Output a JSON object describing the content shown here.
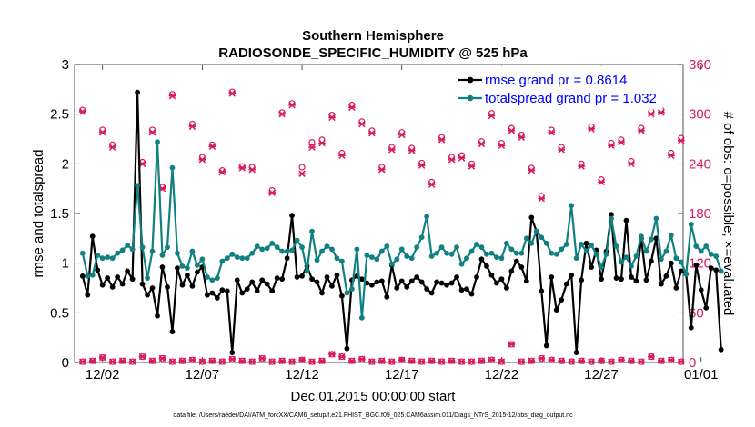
{
  "colors": {
    "rmse": "#000000",
    "spread": "#118080",
    "obs": "#d81b60",
    "legend_text": "#0000ff",
    "axes": "#262626"
  },
  "chart_data": {
    "type": "line",
    "title": "Southern Hemisphere",
    "subtitle": "RADIOSONDE_SPECIFIC_HUMIDITY @ 525 hPa",
    "xlabel": "Dec.01,2015 00:00:00 start",
    "ylabel_left": "rmse and totalspread",
    "ylabel_right": "# of obs: o=possible; ×=evaluated",
    "footer": "data file: /Users/raeder/DAI/ATM_forcXX/CAM6_setup/f.e21.FHIST_BGC.f09_025.CAM6assim.011/Diags_NTrS_2015-12/obs_diag_output.nc",
    "xlim": [
      0.6,
      31.1
    ],
    "x_ticks": [
      2,
      7,
      12,
      17,
      22,
      27,
      32
    ],
    "x_tick_labels": [
      "12/02",
      "12/07",
      "12/12",
      "12/17",
      "12/22",
      "12/27",
      "01/01"
    ],
    "ylim_left": [
      0,
      3
    ],
    "y_ticks_left": [
      0,
      0.5,
      1,
      1.5,
      2,
      2.5,
      3
    ],
    "y_tick_labels_left": [
      "0",
      "0.5",
      "1",
      "1.5",
      "2",
      "2.5",
      "3"
    ],
    "ylim_right": [
      0,
      360
    ],
    "y_ticks_right": [
      0,
      60,
      120,
      180,
      240,
      300,
      360
    ],
    "y_tick_labels_right": [
      "0",
      "60",
      "120",
      "180",
      "240",
      "300",
      "360"
    ],
    "x_step": 0.25,
    "x_start": 1.0,
    "legend": [
      {
        "label": "rmse grand pr = 0.8614",
        "series": "rmse"
      },
      {
        "label": "totalspread grand pr = 1.032",
        "series": "spread"
      }
    ],
    "series": [
      {
        "name": "rmse",
        "values": [
          0.87,
          0.68,
          1.27,
          0.93,
          0.78,
          0.85,
          0.76,
          0.86,
          0.79,
          0.92,
          0.84,
          2.72,
          0.79,
          0.68,
          0.75,
          0.47,
          0.96,
          0.76,
          0.31,
          0.95,
          0.78,
          0.88,
          0.77,
          0.91,
          0.96,
          0.68,
          0.7,
          0.65,
          0.73,
          0.72,
          0.1,
          0.83,
          0.7,
          0.74,
          0.81,
          0.72,
          0.83,
          0.79,
          0.72,
          0.85,
          0.84,
          1.05,
          1.48,
          0.86,
          0.87,
          0.97,
          0.84,
          0.81,
          0.7,
          0.86,
          0.77,
          0.88,
          0.67,
          0.14,
          0.83,
          0.87,
          0.84,
          0.8,
          0.78,
          0.81,
          0.82,
          0.66,
          0.98,
          0.75,
          0.82,
          0.76,
          0.82,
          0.86,
          0.81,
          0.74,
          0.7,
          0.81,
          0.8,
          0.78,
          0.8,
          0.86,
          0.73,
          0.74,
          0.69,
          0.86,
          1.04,
          0.97,
          0.88,
          0.8,
          0.84,
          0.75,
          0.92,
          1.02,
          0.96,
          0.82,
          1.46,
          1.32,
          0.72,
          0.17,
          0.86,
          0.53,
          0.63,
          0.79,
          0.88,
          0.1,
          0.83,
          1.2,
          0.96,
          1.13,
          0.84,
          1.12,
          1.49,
          0.85,
          0.84,
          1.43,
          0.86,
          0.82,
          1.25,
          0.83,
          1.02,
          1.25,
          0.79,
          0.87,
          1.0,
          0.75,
          0.92,
          0.89,
          0.35,
          0.98,
          0.73,
          0.55,
          0.95,
          0.93,
          0.13
        ]
      },
      {
        "name": "totalspread",
        "values": [
          1.1,
          0.87,
          0.88,
          1.08,
          1.05,
          1.06,
          1.05,
          1.1,
          1.13,
          1.18,
          1.14,
          1.78,
          1.16,
          0.85,
          1.12,
          2.22,
          1.08,
          1.16,
          1.96,
          1.1,
          0.97,
          0.95,
          1.12,
          0.98,
          1.04,
          0.86,
          0.83,
          0.85,
          1.02,
          1.05,
          1.09,
          1.06,
          1.05,
          1.05,
          1.1,
          1.17,
          1.14,
          1.15,
          1.2,
          1.16,
          1.12,
          1.12,
          1.13,
          1.23,
          1.16,
          0.92,
          1.32,
          1.03,
          1.12,
          1.17,
          1.14,
          1.05,
          1.02,
          0.7,
          0.74,
          1.14,
          0.45,
          1.08,
          1.06,
          1.04,
          1.12,
          1.17,
          0.99,
          1.04,
          1.14,
          1.07,
          1.05,
          1.16,
          1.26,
          1.47,
          1.07,
          1.1,
          1.16,
          1.1,
          1.09,
          1.16,
          0.99,
          1.05,
          1.12,
          1.19,
          1.16,
          1.09,
          1.1,
          1.06,
          1.05,
          1.2,
          1.14,
          1.1,
          1.1,
          1.25,
          1.2,
          1.32,
          1.26,
          1.2,
          1.1,
          1.09,
          1.14,
          1.19,
          1.58,
          1.05,
          1.19,
          1.12,
          1.18,
          1.09,
          0.96,
          1.09,
          1.45,
          1.17,
          1.01,
          1.06,
          0.97,
          1.07,
          1.27,
          1.12,
          1.24,
          1.45,
          1.04,
          1.12,
          1.28,
          1.05,
          1.01,
          0.89,
          1.39,
          1.17,
          1.12,
          1.17,
          1.09,
          1.07,
          0.92
        ]
      }
    ],
    "obs_evaluated": {
      "x": [
        1.0,
        2.0,
        2.5,
        4.0,
        4.5,
        5.0,
        5.5,
        6.5,
        7.0,
        7.5,
        8.0,
        8.5,
        9.0,
        9.5,
        10.5,
        11.0,
        11.5,
        12.0,
        12.5,
        13.0,
        13.5,
        14.0,
        14.5,
        15.0,
        15.5,
        16.0,
        16.5,
        17.0,
        17.5,
        18.0,
        18.5,
        19.0,
        19.5,
        20.0,
        20.5,
        21.0,
        21.5,
        22.0,
        22.5,
        23.0,
        23.5,
        24.0,
        24.5,
        25.0,
        25.5,
        26.0,
        26.5,
        27.0,
        27.5,
        28.0,
        28.5,
        29.0,
        29.5,
        30.0,
        30.5,
        31.0
      ],
      "y": [
        303,
        278,
        260,
        240,
        278,
        210,
        322,
        285,
        245,
        261,
        230,
        325,
        235,
        233,
        205,
        300,
        311,
        228,
        260,
        265,
        296,
        250,
        308,
        288,
        277,
        233,
        257,
        275,
        256,
        238,
        215,
        269,
        245,
        247,
        237,
        264,
        298,
        262,
        280,
        272,
        232,
        198,
        278,
        257,
        311,
        237,
        282,
        218,
        262,
        266,
        240,
        280,
        300,
        302,
        250,
        268
      ]
    },
    "obs_possible": {
      "x": [
        1.0,
        2.0,
        2.5,
        4.0,
        4.5,
        5.0,
        5.5,
        6.5,
        7.0,
        7.5,
        8.0,
        8.5,
        9.0,
        9.5,
        10.5,
        11.0,
        11.5,
        12.0,
        12.5,
        13.0,
        13.5,
        14.0,
        14.5,
        15.0,
        15.5,
        16.0,
        16.5,
        17.0,
        17.5,
        18.0,
        18.5,
        19.0,
        19.5,
        20.0,
        20.5,
        21.0,
        21.5,
        22.0,
        22.5,
        23.0,
        23.5,
        24.0,
        24.5,
        25.0,
        25.5,
        26.0,
        26.5,
        27.0,
        27.5,
        28.0,
        28.5,
        29.0,
        29.5,
        30.0,
        30.5,
        31.0
      ],
      "y": [
        305,
        281,
        263,
        242,
        281,
        212,
        324,
        288,
        248,
        263,
        232,
        327,
        237,
        236,
        208,
        302,
        313,
        236,
        266,
        269,
        299,
        253,
        311,
        291,
        280,
        236,
        260,
        278,
        259,
        241,
        218,
        272,
        248,
        250,
        240,
        267,
        301,
        265,
        283,
        275,
        235,
        201,
        281,
        260,
        314,
        240,
        285,
        221,
        265,
        269,
        243,
        283,
        303,
        305,
        253,
        271
      ]
    },
    "obs_low": {
      "x": [
        1.0,
        1.5,
        2.0,
        2.5,
        3.0,
        3.5,
        4.0,
        4.5,
        5.0,
        5.5,
        6.0,
        6.5,
        7.0,
        7.5,
        8.0,
        8.5,
        9.0,
        9.5,
        10.0,
        10.5,
        11.0,
        11.5,
        12.0,
        12.5,
        13.0,
        13.5,
        14.0,
        14.5,
        15.0,
        15.5,
        16.0,
        16.5,
        17.0,
        17.5,
        18.0,
        18.5,
        19.0,
        19.5,
        20.0,
        20.5,
        21.0,
        21.5,
        22.0,
        22.5,
        23.0,
        23.5,
        24.0,
        24.5,
        25.0,
        25.5,
        26.0,
        26.5,
        27.0,
        27.5,
        28.0,
        28.5,
        29.0,
        29.5,
        30.0,
        30.5,
        31.0
      ],
      "y": [
        1,
        2,
        6,
        1,
        2,
        1,
        7,
        2,
        5,
        1,
        2,
        3,
        1,
        2,
        1,
        4,
        2,
        1,
        5,
        1,
        2,
        1,
        3,
        1,
        2,
        10,
        7,
        2,
        4,
        1,
        2,
        1,
        3,
        2,
        1,
        2,
        1,
        2,
        1,
        1,
        2,
        3,
        1,
        22,
        1,
        2,
        5,
        3,
        2,
        1,
        2,
        1,
        2,
        1,
        3,
        2,
        1,
        7,
        2,
        3,
        1
      ]
    }
  }
}
